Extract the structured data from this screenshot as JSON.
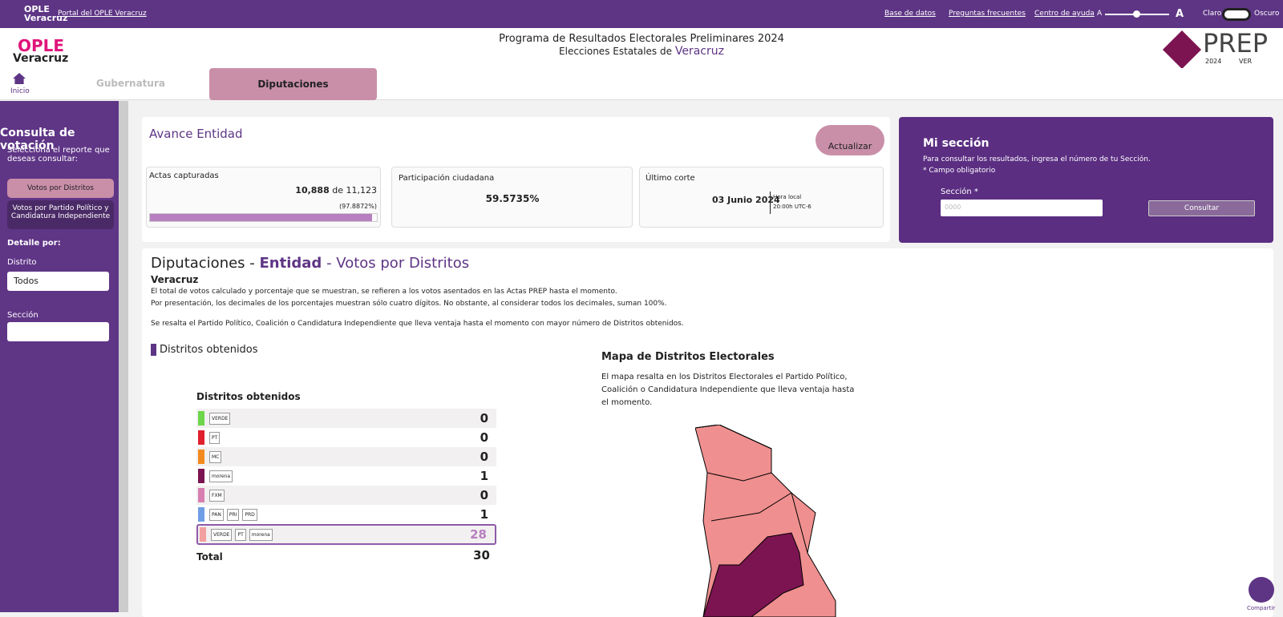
{
  "topbar": {
    "logo": "OPLE Veracruz",
    "portal": "Portal del OPLE Veracruz",
    "links": [
      "Base de datos",
      "Preguntas frecuentes",
      "Centro de ayuda"
    ],
    "font_small": "A",
    "font_large": "A",
    "light": "Claro",
    "dark": "Oscuro"
  },
  "header": {
    "logo_top": "OPLE",
    "logo_bottom": "Veracruz",
    "title": "Programa de Resultados Electorales Preliminares 2024",
    "subtitle": "Elecciones Estatales de",
    "state": "Veracruz",
    "prep": "PREP",
    "prep_year": "2024",
    "prep_state": "VER"
  },
  "nav": {
    "home": "Inicio",
    "tabs": [
      "Gubernatura",
      "Diputaciones"
    ]
  },
  "sidebar": {
    "title": "Consulta de votación",
    "prompt": "Selecciona el reporte que deseas consultar:",
    "options": [
      "Votos por Distritos",
      "Votos por Partido Político y Candidatura Independiente"
    ],
    "detail": "Detalle por:",
    "district_label": "Distrito",
    "district_value": "Todos",
    "section_label": "Sección"
  },
  "avance": {
    "title": "Avance Entidad",
    "refresh": "Actualizar",
    "actas_label": "Actas capturadas",
    "captured": "10,888",
    "of": "de",
    "total": "11,123",
    "progress": {
      "value": 97.8872,
      "label": "(97.8872%)"
    },
    "participation_label": "Participación ciudadana",
    "participation": "59.5735%",
    "cut_label": "Último corte",
    "cut_date": "03 Junio 2024",
    "cut_time_label": "Hora local",
    "cut_time": "20:00h UTC-6"
  },
  "mi_seccion": {
    "title": "Mi sección",
    "info": "Para consultar los resultados, ingresa el número de tu Sección.",
    "required": "* Campo obligatorio",
    "label": "Sección *",
    "placeholder": "0000",
    "button": "Consultar"
  },
  "main": {
    "title_a": "Diputaciones -",
    "title_b": "Entidad",
    "title_c": "- Votos por Distritos",
    "state": "Veracruz",
    "notes": [
      "El total de votos calculado y porcentaje que se muestran, se refieren a los votos asentados en las Actas PREP hasta el momento.",
      "Por presentación, los decimales de los porcentajes muestran sólo cuatro dígitos. No obstante, al considerar todos los decimales, suman 100%.",
      "Se resalta el Partido Político, Coalición o Candidatura Independiente que lleva ventaja hasta el momento con mayor número de Distritos obtenidos."
    ],
    "section": "Distritos obtenidos"
  },
  "table": {
    "title": "Distritos obtenidos",
    "rows": [
      {
        "color": "#6dd64a",
        "logos": [
          "VERDE"
        ],
        "value": "0"
      },
      {
        "color": "#e0202e",
        "logos": [
          "PT"
        ],
        "value": "0"
      },
      {
        "color": "#f28a1e",
        "logos": [
          "MC"
        ],
        "value": "0"
      },
      {
        "color": "#7b1450",
        "logos": [
          "morena"
        ],
        "value": "1"
      },
      {
        "color": "#d77fb0",
        "logos": [
          "FXM"
        ],
        "value": "0"
      },
      {
        "color": "#6f9ee6",
        "logos": [
          "PAN",
          "PRI",
          "PRD"
        ],
        "value": "1"
      },
      {
        "color": "#f2a0a0",
        "logos": [
          "VERDE",
          "PT",
          "morena"
        ],
        "value": "28"
      }
    ],
    "total_label": "Total",
    "total": "30"
  },
  "map": {
    "title": "Mapa de Distritos Electorales",
    "text": "El mapa resalta en los Distritos Electorales el Partido Político, Coalición o Candidatura Independiente que lleva ventaja hasta el momento."
  },
  "share": "Compartir"
}
